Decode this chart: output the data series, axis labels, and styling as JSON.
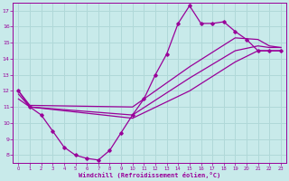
{
  "bg_color": "#c8eaea",
  "line_color": "#990099",
  "grid_color": "#b0d8d8",
  "xlabel": "Windchill (Refroidissement éolien,°C)",
  "xlabel_color": "#990099",
  "xlim": [
    -0.5,
    23.5
  ],
  "ylim": [
    7.5,
    17.5
  ],
  "yticks": [
    8,
    9,
    10,
    11,
    12,
    13,
    14,
    15,
    16,
    17
  ],
  "xticks": [
    0,
    1,
    2,
    3,
    4,
    5,
    6,
    7,
    8,
    9,
    10,
    11,
    12,
    13,
    14,
    15,
    16,
    17,
    18,
    19,
    20,
    21,
    22,
    23
  ],
  "series1_x": [
    0,
    1,
    2,
    3,
    4,
    5,
    6,
    7,
    8,
    9,
    10,
    11,
    12,
    13,
    14,
    15,
    16,
    17,
    18,
    19,
    20,
    21,
    22,
    23
  ],
  "series1_y": [
    12,
    11,
    10.5,
    9.5,
    8.5,
    8.0,
    7.8,
    7.7,
    8.3,
    9.4,
    10.5,
    11.5,
    13.0,
    14.3,
    16.2,
    17.3,
    16.2,
    16.2,
    16.3,
    15.7,
    15.2,
    14.5,
    14.5,
    14.5
  ],
  "series2_x": [
    0,
    1,
    10,
    15,
    19,
    21,
    22,
    23
  ],
  "series2_y": [
    12,
    11.1,
    11.0,
    13.5,
    15.3,
    15.2,
    14.8,
    14.7
  ],
  "series3_x": [
    0,
    1,
    10,
    15,
    19,
    21,
    22,
    23
  ],
  "series3_y": [
    11.8,
    11.0,
    10.5,
    12.8,
    14.5,
    14.8,
    14.7,
    14.7
  ],
  "series4_x": [
    0,
    1,
    10,
    15,
    19,
    21,
    22,
    23
  ],
  "series4_y": [
    11.5,
    11.0,
    10.3,
    12.0,
    13.8,
    14.5,
    14.5,
    14.5
  ]
}
